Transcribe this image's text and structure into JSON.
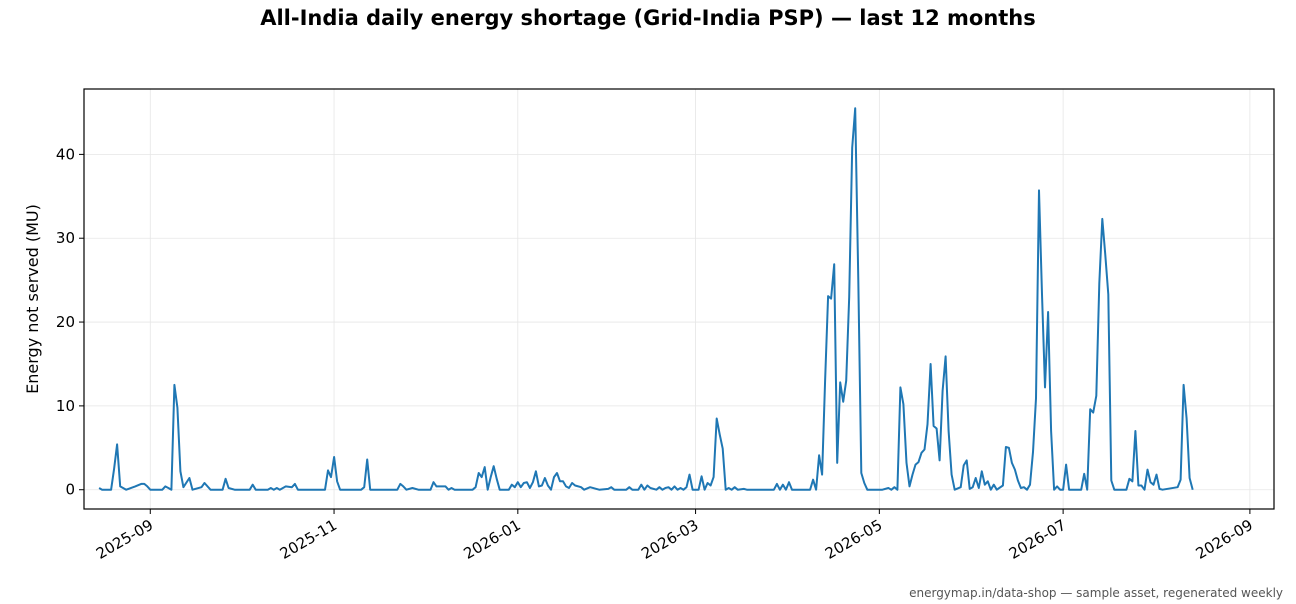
{
  "footer": "energymap.in/data-shop — sample asset, regenerated weekly",
  "colors": {
    "line": "#1f77b4",
    "grid": "#e6e6e6",
    "axis": "#000000"
  },
  "chart_data": {
    "type": "line",
    "title": "All-India daily energy shortage (Grid-India PSP) — last 12 months",
    "xlabel": "",
    "ylabel": "Energy not served (MU)",
    "x_axis": "date",
    "xlim": [
      "2025-08-10",
      "2026-09-09"
    ],
    "ylim": [
      -2.3,
      47.8
    ],
    "xticks": [
      "2025-09",
      "2025-11",
      "2026-01",
      "2026-03",
      "2026-05",
      "2026-07",
      "2026-09"
    ],
    "yticks": [
      0,
      10,
      20,
      30,
      40
    ],
    "grid": true,
    "legend": "none",
    "series": [
      {
        "points": [
          [
            "2025-08-15",
            0.2
          ],
          [
            "2025-08-16",
            0.0
          ],
          [
            "2025-08-19",
            0.0
          ],
          [
            "2025-08-20",
            2.5
          ],
          [
            "2025-08-21",
            5.4
          ],
          [
            "2025-08-22",
            0.4
          ],
          [
            "2025-08-24",
            0.0
          ],
          [
            "2025-08-27",
            0.4
          ],
          [
            "2025-08-29",
            0.7
          ],
          [
            "2025-08-30",
            0.7
          ],
          [
            "2025-08-31",
            0.4
          ],
          [
            "2025-09-01",
            0.0
          ],
          [
            "2025-09-03",
            0.0
          ],
          [
            "2025-09-05",
            0.0
          ],
          [
            "2025-09-06",
            0.4
          ],
          [
            "2025-09-07",
            0.2
          ],
          [
            "2025-09-08",
            0.0
          ],
          [
            "2025-09-09",
            12.5
          ],
          [
            "2025-09-10",
            9.8
          ],
          [
            "2025-09-11",
            2.2
          ],
          [
            "2025-09-12",
            0.3
          ],
          [
            "2025-09-14",
            1.4
          ],
          [
            "2025-09-15",
            0.0
          ],
          [
            "2025-09-18",
            0.3
          ],
          [
            "2025-09-19",
            0.8
          ],
          [
            "2025-09-21",
            0.0
          ],
          [
            "2025-09-25",
            0.0
          ],
          [
            "2025-09-26",
            1.3
          ],
          [
            "2025-09-27",
            0.2
          ],
          [
            "2025-09-29",
            0.0
          ],
          [
            "2025-10-04",
            0.0
          ],
          [
            "2025-10-05",
            0.6
          ],
          [
            "2025-10-06",
            0.0
          ],
          [
            "2025-10-10",
            0.0
          ],
          [
            "2025-10-11",
            0.2
          ],
          [
            "2025-10-12",
            0.0
          ],
          [
            "2025-10-13",
            0.2
          ],
          [
            "2025-10-14",
            0.0
          ],
          [
            "2025-10-16",
            0.4
          ],
          [
            "2025-10-18",
            0.3
          ],
          [
            "2025-10-19",
            0.7
          ],
          [
            "2025-10-20",
            0.0
          ],
          [
            "2025-10-26",
            0.0
          ],
          [
            "2025-10-29",
            0.0
          ],
          [
            "2025-10-30",
            2.3
          ],
          [
            "2025-10-31",
            1.5
          ],
          [
            "2025-11-01",
            3.9
          ],
          [
            "2025-11-02",
            1.0
          ],
          [
            "2025-11-03",
            0.0
          ],
          [
            "2025-11-10",
            0.0
          ],
          [
            "2025-11-11",
            0.3
          ],
          [
            "2025-11-12",
            3.6
          ],
          [
            "2025-11-13",
            0.0
          ],
          [
            "2025-11-22",
            0.0
          ],
          [
            "2025-11-23",
            0.7
          ],
          [
            "2025-11-24",
            0.4
          ],
          [
            "2025-11-25",
            0.0
          ],
          [
            "2025-11-27",
            0.2
          ],
          [
            "2025-11-29",
            0.0
          ],
          [
            "2025-12-03",
            0.0
          ],
          [
            "2025-12-04",
            0.9
          ],
          [
            "2025-12-05",
            0.4
          ],
          [
            "2025-12-08",
            0.4
          ],
          [
            "2025-12-09",
            0.0
          ],
          [
            "2025-12-10",
            0.2
          ],
          [
            "2025-12-11",
            0.0
          ],
          [
            "2025-12-17",
            0.0
          ],
          [
            "2025-12-18",
            0.3
          ],
          [
            "2025-12-19",
            2.0
          ],
          [
            "2025-12-20",
            1.5
          ],
          [
            "2025-12-21",
            2.7
          ],
          [
            "2025-12-22",
            0.0
          ],
          [
            "2025-12-23",
            1.5
          ],
          [
            "2025-12-24",
            2.8
          ],
          [
            "2025-12-25",
            1.3
          ],
          [
            "2025-12-26",
            0.0
          ],
          [
            "2025-12-29",
            0.0
          ],
          [
            "2025-12-30",
            0.6
          ],
          [
            "2025-12-31",
            0.3
          ],
          [
            "2026-01-01",
            0.9
          ],
          [
            "2026-01-02",
            0.3
          ],
          [
            "2026-01-03",
            0.8
          ],
          [
            "2026-01-04",
            0.9
          ],
          [
            "2026-01-05",
            0.2
          ],
          [
            "2026-01-06",
            0.9
          ],
          [
            "2026-01-07",
            2.2
          ],
          [
            "2026-01-08",
            0.4
          ],
          [
            "2026-01-09",
            0.5
          ],
          [
            "2026-01-10",
            1.4
          ],
          [
            "2026-01-11",
            0.5
          ],
          [
            "2026-01-12",
            0.0
          ],
          [
            "2026-01-13",
            1.5
          ],
          [
            "2026-01-14",
            2.0
          ],
          [
            "2026-01-15",
            1.0
          ],
          [
            "2026-01-16",
            1.0
          ],
          [
            "2026-01-17",
            0.4
          ],
          [
            "2026-01-18",
            0.2
          ],
          [
            "2026-01-19",
            0.8
          ],
          [
            "2026-01-20",
            0.5
          ],
          [
            "2026-01-22",
            0.3
          ],
          [
            "2026-01-23",
            0.0
          ],
          [
            "2026-01-25",
            0.3
          ],
          [
            "2026-01-28",
            0.0
          ],
          [
            "2026-01-31",
            0.1
          ],
          [
            "2026-02-01",
            0.3
          ],
          [
            "2026-02-02",
            0.0
          ],
          [
            "2026-02-06",
            0.0
          ],
          [
            "2026-02-07",
            0.3
          ],
          [
            "2026-02-08",
            0.0
          ],
          [
            "2026-02-10",
            0.0
          ],
          [
            "2026-02-11",
            0.6
          ],
          [
            "2026-02-12",
            0.0
          ],
          [
            "2026-02-13",
            0.5
          ],
          [
            "2026-02-14",
            0.2
          ],
          [
            "2026-02-16",
            0.0
          ],
          [
            "2026-02-17",
            0.3
          ],
          [
            "2026-02-18",
            0.0
          ],
          [
            "2026-02-19",
            0.2
          ],
          [
            "2026-02-20",
            0.3
          ],
          [
            "2026-02-21",
            0.0
          ],
          [
            "2026-02-22",
            0.4
          ],
          [
            "2026-02-23",
            0.0
          ],
          [
            "2026-02-24",
            0.2
          ],
          [
            "2026-02-25",
            0.0
          ],
          [
            "2026-02-26",
            0.3
          ],
          [
            "2026-02-27",
            1.8
          ],
          [
            "2026-02-28",
            0.0
          ],
          [
            "2026-03-02",
            0.0
          ],
          [
            "2026-03-03",
            1.6
          ],
          [
            "2026-03-04",
            0.0
          ],
          [
            "2026-03-05",
            0.8
          ],
          [
            "2026-03-06",
            0.5
          ],
          [
            "2026-03-07",
            1.5
          ],
          [
            "2026-03-08",
            8.5
          ],
          [
            "2026-03-09",
            6.6
          ],
          [
            "2026-03-10",
            4.9
          ],
          [
            "2026-03-11",
            0.0
          ],
          [
            "2026-03-12",
            0.2
          ],
          [
            "2026-03-13",
            0.0
          ],
          [
            "2026-03-14",
            0.3
          ],
          [
            "2026-03-15",
            0.0
          ],
          [
            "2026-03-17",
            0.1
          ],
          [
            "2026-03-18",
            0.0
          ],
          [
            "2026-03-27",
            0.0
          ],
          [
            "2026-03-28",
            0.7
          ],
          [
            "2026-03-29",
            0.0
          ],
          [
            "2026-03-30",
            0.6
          ],
          [
            "2026-03-31",
            0.0
          ],
          [
            "2026-04-01",
            0.9
          ],
          [
            "2026-04-02",
            0.0
          ],
          [
            "2026-04-08",
            0.0
          ],
          [
            "2026-04-09",
            1.2
          ],
          [
            "2026-04-10",
            0.0
          ],
          [
            "2026-04-11",
            4.1
          ],
          [
            "2026-04-12",
            1.8
          ],
          [
            "2026-04-13",
            13.0
          ],
          [
            "2026-04-14",
            23.1
          ],
          [
            "2026-04-15",
            22.8
          ],
          [
            "2026-04-16",
            26.9
          ],
          [
            "2026-04-17",
            3.2
          ],
          [
            "2026-04-18",
            12.8
          ],
          [
            "2026-04-19",
            10.5
          ],
          [
            "2026-04-20",
            13.0
          ],
          [
            "2026-04-21",
            23.0
          ],
          [
            "2026-04-22",
            40.8
          ],
          [
            "2026-04-23",
            45.5
          ],
          [
            "2026-04-24",
            25.0
          ],
          [
            "2026-04-25",
            2.0
          ],
          [
            "2026-04-26",
            0.8
          ],
          [
            "2026-04-27",
            0.0
          ],
          [
            "2026-05-02",
            0.0
          ],
          [
            "2026-05-04",
            0.2
          ],
          [
            "2026-05-05",
            0.0
          ],
          [
            "2026-05-06",
            0.3
          ],
          [
            "2026-05-07",
            0.0
          ],
          [
            "2026-05-08",
            12.2
          ],
          [
            "2026-05-09",
            10.2
          ],
          [
            "2026-05-10",
            3.2
          ],
          [
            "2026-05-11",
            0.4
          ],
          [
            "2026-05-12",
            1.8
          ],
          [
            "2026-05-13",
            3.0
          ],
          [
            "2026-05-14",
            3.3
          ],
          [
            "2026-05-15",
            4.4
          ],
          [
            "2026-05-16",
            4.8
          ],
          [
            "2026-05-17",
            7.8
          ],
          [
            "2026-05-18",
            15.0
          ],
          [
            "2026-05-19",
            7.6
          ],
          [
            "2026-05-20",
            7.3
          ],
          [
            "2026-05-21",
            3.5
          ],
          [
            "2026-05-22",
            11.8
          ],
          [
            "2026-05-23",
            15.9
          ],
          [
            "2026-05-24",
            7.0
          ],
          [
            "2026-05-25",
            1.8
          ],
          [
            "2026-05-26",
            0.0
          ],
          [
            "2026-05-28",
            0.3
          ],
          [
            "2026-05-29",
            2.9
          ],
          [
            "2026-05-30",
            3.5
          ],
          [
            "2026-05-31",
            0.1
          ],
          [
            "2026-06-01",
            0.3
          ],
          [
            "2026-06-02",
            1.4
          ],
          [
            "2026-06-03",
            0.2
          ],
          [
            "2026-06-04",
            2.2
          ],
          [
            "2026-06-05",
            0.6
          ],
          [
            "2026-06-06",
            1.0
          ],
          [
            "2026-06-07",
            0.0
          ],
          [
            "2026-06-08",
            0.6
          ],
          [
            "2026-06-09",
            0.0
          ],
          [
            "2026-06-11",
            0.5
          ],
          [
            "2026-06-12",
            5.1
          ],
          [
            "2026-06-13",
            5.0
          ],
          [
            "2026-06-14",
            3.2
          ],
          [
            "2026-06-15",
            2.4
          ],
          [
            "2026-06-16",
            1.1
          ],
          [
            "2026-06-17",
            0.2
          ],
          [
            "2026-06-18",
            0.3
          ],
          [
            "2026-06-19",
            0.0
          ],
          [
            "2026-06-20",
            0.6
          ],
          [
            "2026-06-21",
            4.5
          ],
          [
            "2026-06-22",
            10.9
          ],
          [
            "2026-06-23",
            35.7
          ],
          [
            "2026-06-24",
            23.3
          ],
          [
            "2026-06-25",
            12.2
          ],
          [
            "2026-06-26",
            21.2
          ],
          [
            "2026-06-27",
            7.0
          ],
          [
            "2026-06-28",
            0.0
          ],
          [
            "2026-06-29",
            0.4
          ],
          [
            "2026-06-30",
            0.0
          ],
          [
            "2026-07-01",
            0.0
          ],
          [
            "2026-07-02",
            3.0
          ],
          [
            "2026-07-03",
            0.0
          ],
          [
            "2026-07-07",
            0.0
          ],
          [
            "2026-07-08",
            1.9
          ],
          [
            "2026-07-09",
            0.0
          ],
          [
            "2026-07-10",
            9.6
          ],
          [
            "2026-07-11",
            9.2
          ],
          [
            "2026-07-12",
            11.2
          ],
          [
            "2026-07-13",
            24.6
          ],
          [
            "2026-07-14",
            32.3
          ],
          [
            "2026-07-15",
            28.0
          ],
          [
            "2026-07-16",
            23.3
          ],
          [
            "2026-07-17",
            1.1
          ],
          [
            "2026-07-18",
            0.0
          ],
          [
            "2026-07-22",
            0.0
          ],
          [
            "2026-07-23",
            1.3
          ],
          [
            "2026-07-24",
            1.0
          ],
          [
            "2026-07-25",
            7.0
          ],
          [
            "2026-07-26",
            0.5
          ],
          [
            "2026-07-27",
            0.5
          ],
          [
            "2026-07-28",
            0.0
          ],
          [
            "2026-07-29",
            2.4
          ],
          [
            "2026-07-30",
            0.9
          ],
          [
            "2026-07-31",
            0.6
          ],
          [
            "2026-08-01",
            1.8
          ],
          [
            "2026-08-02",
            0.1
          ],
          [
            "2026-08-03",
            0.0
          ],
          [
            "2026-08-08",
            0.3
          ],
          [
            "2026-08-09",
            1.2
          ],
          [
            "2026-08-10",
            12.5
          ],
          [
            "2026-08-11",
            8.5
          ],
          [
            "2026-08-12",
            1.4
          ],
          [
            "2026-08-13",
            0.0
          ]
        ]
      }
    ]
  }
}
